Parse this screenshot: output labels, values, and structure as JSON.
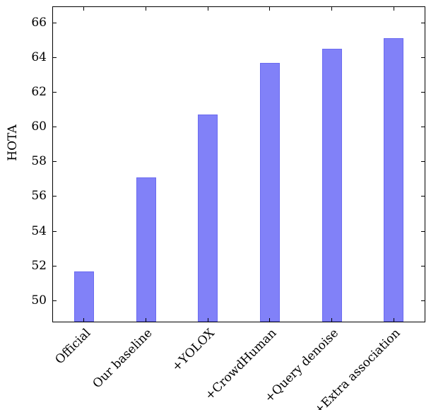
{
  "chart_data": {
    "type": "bar",
    "categories": [
      "Official",
      "Our baseline",
      "+YOLOX",
      "+CrowdHuman",
      "+Query denoise",
      "+Extra association"
    ],
    "values": [
      51.7,
      57.1,
      60.7,
      63.7,
      64.5,
      65.1
    ],
    "title": "",
    "xlabel": "",
    "ylabel": "HOTA",
    "ylim": [
      48.8,
      66.9
    ],
    "yticks": [
      50,
      52,
      54,
      56,
      58,
      60,
      62,
      64,
      66
    ],
    "bar_color": "#8181f8",
    "bar_border_color": "#6b6bf0",
    "axis_color": "#000000",
    "grid": false,
    "legend": null,
    "x_tick_label_rotation_deg": -45
  }
}
